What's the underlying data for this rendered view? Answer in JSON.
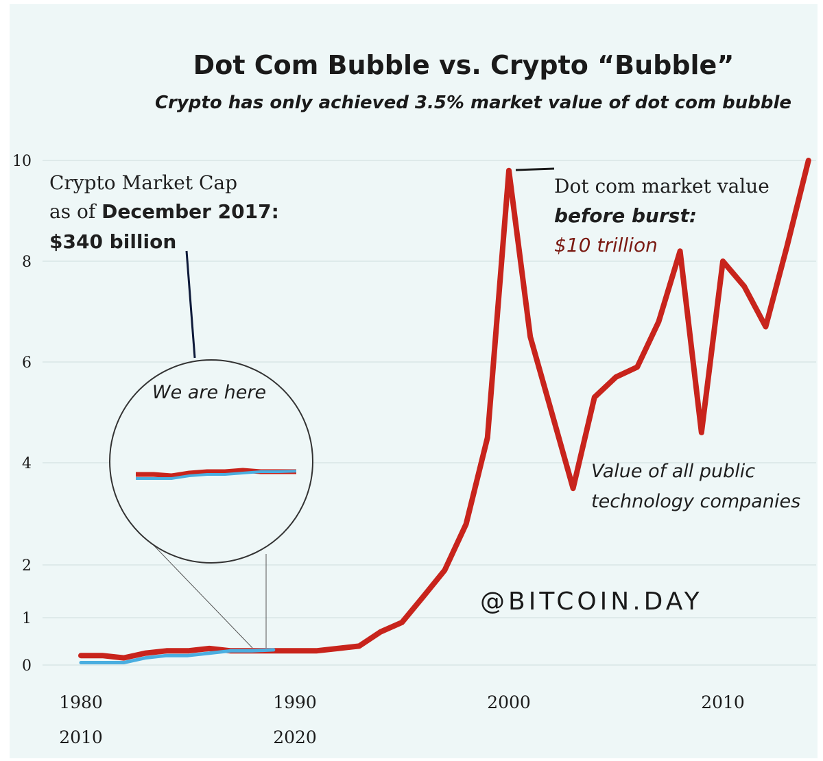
{
  "chart_data": {
    "type": "line",
    "title": "Dot Com Bubble vs. Crypto “Bubble”",
    "subtitle": "Crypto has only achieved 3.5% market value of dot com bubble",
    "xlabel": "",
    "ylabel": "",
    "ylim": [
      0,
      10
    ],
    "yticks": [
      "0",
      "1",
      "2",
      "4",
      "6",
      "8",
      "10"
    ],
    "xticks_primary": [
      "1980",
      "1990",
      "2000",
      "2010"
    ],
    "xticks_secondary": [
      "2010",
      "2020"
    ],
    "grid": true,
    "series": [
      {
        "name": "Value of all public technology companies",
        "color": "#c8241c",
        "x": [
          1980,
          1981,
          1982,
          1983,
          1984,
          1985,
          1986,
          1987,
          1988,
          1989,
          1990,
          1991,
          1992,
          1993,
          1994,
          1995,
          1996,
          1997,
          1998,
          1999,
          2000,
          2001,
          2002,
          2003,
          2004,
          2005,
          2006,
          2007,
          2008,
          2009,
          2010,
          2011,
          2012,
          2013,
          2014
        ],
        "values": [
          0.2,
          0.2,
          0.15,
          0.25,
          0.3,
          0.3,
          0.35,
          0.3,
          0.3,
          0.3,
          0.3,
          0.3,
          0.35,
          0.4,
          0.7,
          0.9,
          1.4,
          1.9,
          2.8,
          4.5,
          9.8,
          6.5,
          5.0,
          3.5,
          5.3,
          5.7,
          5.9,
          6.8,
          8.2,
          4.6,
          8.0,
          7.5,
          6.7,
          8.3,
          10.0
        ]
      },
      {
        "name": "Crypto Market Cap",
        "color": "#4aaee0",
        "x": [
          1980,
          1981,
          1982,
          1983,
          1984,
          1985,
          1986,
          1987,
          1988,
          1989
        ],
        "values": [
          0.05,
          0.05,
          0.05,
          0.15,
          0.2,
          0.2,
          0.25,
          0.3,
          0.3,
          0.32
        ]
      }
    ],
    "annotations": {
      "crypto_line1": "Crypto Market Cap",
      "crypto_line2_prefix": "as of ",
      "crypto_line2_bold": "December 2017:",
      "crypto_line3": "$340 billion",
      "dotcom_line1": "Dot com market value",
      "dotcom_line2": "before burst:",
      "dotcom_line3": "$10 trillion",
      "tech_line1": "Value of all public",
      "tech_line2": "technology companies",
      "zoom_label": "We are here"
    },
    "watermark": "@BITCOIN.DAY"
  }
}
